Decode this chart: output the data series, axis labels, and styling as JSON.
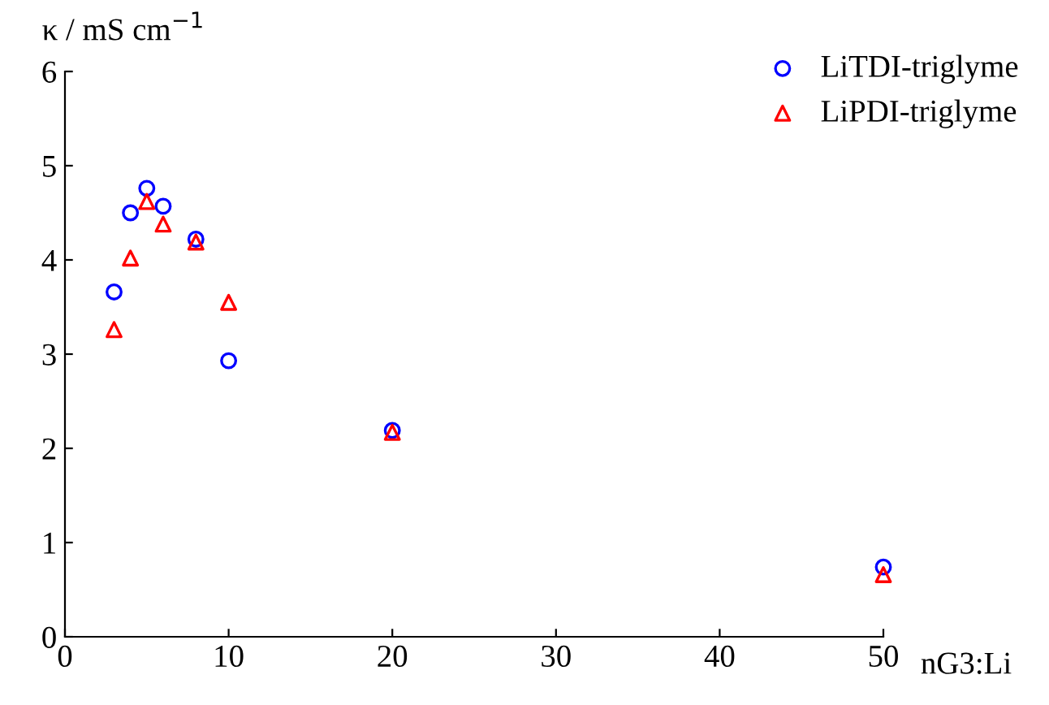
{
  "chart_data": {
    "type": "scatter",
    "xlabel": "nG3:Li",
    "ylabel": "κ / mS cm$^{−1}$",
    "xlim": [
      0,
      50
    ],
    "xticks": [
      0,
      10,
      20,
      30,
      40,
      50
    ],
    "ylim": [
      0,
      6
    ],
    "yticks": [
      0,
      1,
      2,
      3,
      4,
      5,
      6
    ],
    "grid": false,
    "legend": "top right",
    "series": [
      {
        "name": "LiTDI-triglyme",
        "color": "#0000ff",
        "marker": "circle",
        "x": [
          3,
          4,
          5,
          6,
          8,
          10,
          20,
          50
        ],
        "values": [
          3.66,
          4.5,
          4.76,
          4.57,
          4.22,
          2.93,
          2.19,
          0.74
        ]
      },
      {
        "name": "LiPDI-triglyme",
        "color": "#ff0000",
        "marker": "triangle",
        "x": [
          3,
          4,
          5,
          6,
          8,
          10,
          20,
          50
        ],
        "values": [
          3.26,
          4.02,
          4.62,
          4.38,
          4.19,
          3.55,
          2.17,
          0.66
        ]
      }
    ]
  }
}
